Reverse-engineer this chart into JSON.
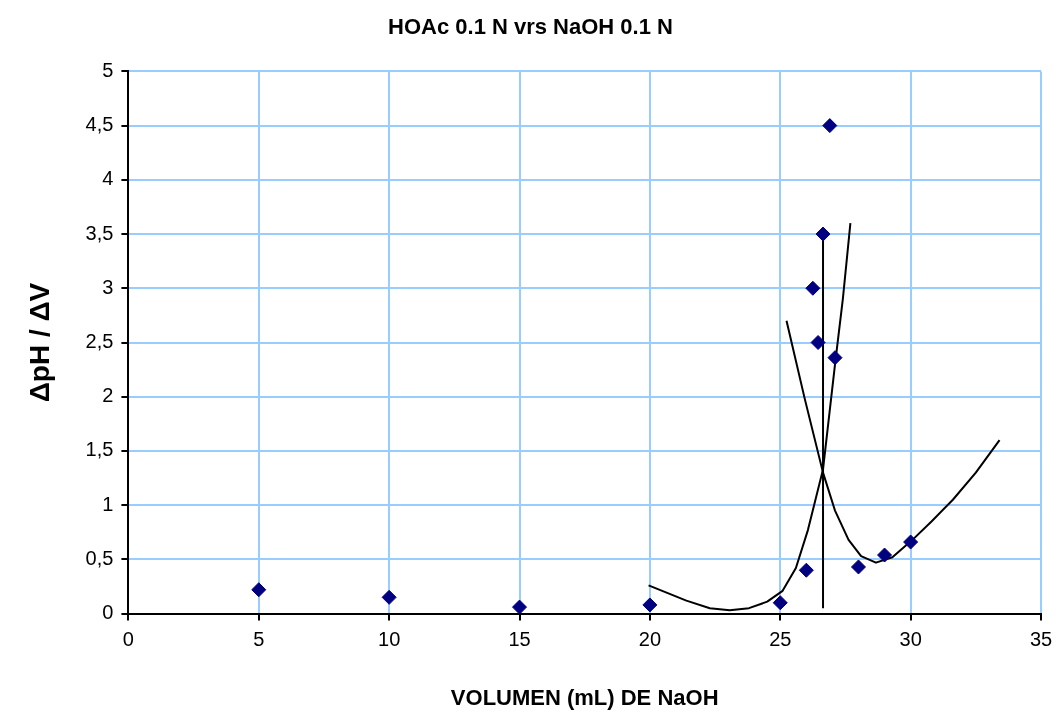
{
  "chart_data": {
    "type": "scatter",
    "title": "HOAc 0.1 N vrs NaOH 0.1 N",
    "xlabel": "VOLUMEN (mL) DE NaOH",
    "ylabel": "ΔpH / ΔV",
    "xlim": [
      0,
      35
    ],
    "xticks": [
      0,
      5,
      10,
      15,
      20,
      25,
      30,
      35
    ],
    "ylim": [
      0,
      5
    ],
    "yticks": [
      0,
      {
        "value": 0.5,
        "label": "0,5"
      },
      1,
      {
        "value": 1.5,
        "label": "1,5"
      },
      2,
      {
        "value": 2.5,
        "label": "2,5"
      },
      3,
      {
        "value": 3.5,
        "label": "3,5"
      },
      4,
      {
        "value": 4.5,
        "label": "4,5"
      },
      5
    ],
    "grid": true,
    "legend": false,
    "series": [
      {
        "marker": "diamond",
        "color": "#000080",
        "x": [
          5,
          10,
          15,
          20,
          25,
          26,
          26.25,
          26.45,
          26.64,
          26.9,
          27.1,
          28,
          29,
          30
        ],
        "values": [
          0.22,
          0.15,
          0.06,
          0.08,
          0.1,
          0.4,
          3.0,
          2.5,
          3.5,
          4.5,
          2.36,
          0.43,
          0.54,
          0.66
        ]
      },
      {
        "type": "line",
        "marker": "none",
        "color": "#000000",
        "x": [
          19.95,
          21.4,
          22.3,
          23.06,
          23.8,
          24.5,
          25.09,
          25.6,
          26.06,
          26.64,
          27.11,
          27.4,
          27.69
        ],
        "values": [
          0.26,
          0.12,
          0.05,
          0.03,
          0.05,
          0.11,
          0.21,
          0.42,
          0.77,
          1.33,
          2.32,
          2.9,
          3.6
        ]
      },
      {
        "type": "line",
        "marker": "none",
        "color": "#000000",
        "x": [
          25.24,
          25.94,
          26.64,
          27.1,
          27.62,
          28.1,
          28.67,
          29.3,
          30.07,
          30.8,
          31.62,
          32.5,
          33.41
        ],
        "values": [
          2.7,
          1.98,
          1.3,
          0.95,
          0.68,
          0.53,
          0.47,
          0.52,
          0.68,
          0.85,
          1.05,
          1.3,
          1.6
        ]
      },
      {
        "type": "line",
        "marker": "none",
        "color": "#000000",
        "x": [
          26.64,
          26.64
        ],
        "values": [
          0.05,
          3.45
        ]
      }
    ]
  }
}
